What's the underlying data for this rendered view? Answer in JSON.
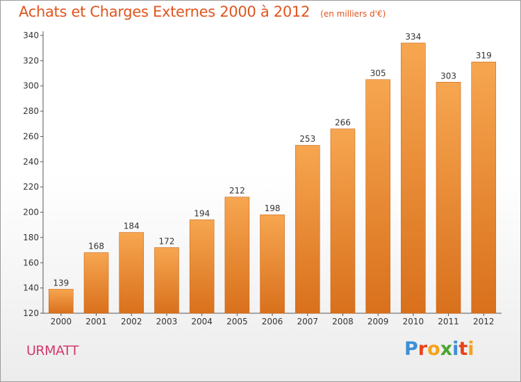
{
  "header": {
    "title": "Achats et Charges Externes 2000 à 2012",
    "subtitle": "(en milliers d'€)"
  },
  "footer": {
    "commune": "URMATT",
    "logo_letters": [
      "P",
      "r",
      "o",
      "x",
      "i",
      "t",
      "i"
    ]
  },
  "colors": {
    "title": "#e0541e",
    "commune": "#d23a6a",
    "bar_light": "#f7a650",
    "bar_dark": "#d9701c",
    "logo": [
      "#3a8fd6",
      "#e8441c",
      "#f4a31a",
      "#4aa532",
      "#3a8fd6",
      "#e8441c",
      "#f4a31a"
    ]
  },
  "chart_data": {
    "type": "bar",
    "title": "Achats et Charges Externes 2000 à 2012",
    "subtitle": "(en milliers d'€)",
    "categories": [
      "2000",
      "2001",
      "2002",
      "2003",
      "2004",
      "2005",
      "2006",
      "2007",
      "2008",
      "2009",
      "2010",
      "2011",
      "2012"
    ],
    "values": [
      139,
      168,
      184,
      172,
      194,
      212,
      198,
      253,
      266,
      305,
      334,
      303,
      319
    ],
    "ylim": [
      120,
      340
    ],
    "yticks": [
      120,
      140,
      160,
      180,
      200,
      220,
      240,
      260,
      280,
      300,
      320,
      340
    ],
    "grid": false,
    "legend": "none"
  }
}
